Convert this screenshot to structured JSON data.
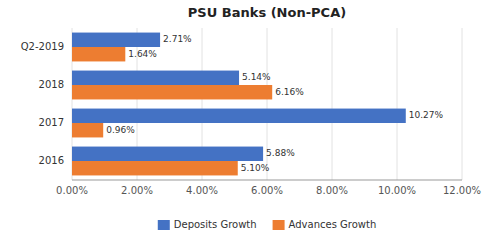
{
  "chart_data": {
    "type": "bar",
    "orientation": "horizontal",
    "title": "PSU Banks (Non-PCA)",
    "categories": [
      "Q2-2019",
      "2018",
      "2017",
      "2016"
    ],
    "series": [
      {
        "name": "Deposits Growth",
        "color": "#4472C4",
        "values": [
          2.71,
          5.14,
          10.27,
          5.88
        ],
        "value_labels": [
          "2.71%",
          "5.14%",
          "10.27%",
          "5.88%"
        ]
      },
      {
        "name": "Advances Growth",
        "color": "#ED7D31",
        "values": [
          1.64,
          6.16,
          0.96,
          5.1
        ],
        "value_labels": [
          "1.64%",
          "6.16%",
          "0.96%",
          "5.10%"
        ]
      }
    ],
    "xlim": [
      0,
      12.0
    ],
    "xticks": [
      {
        "value": 0,
        "label": "0.00%"
      },
      {
        "value": 2,
        "label": "2.00%"
      },
      {
        "value": 4,
        "label": "4.00%"
      },
      {
        "value": 6,
        "label": "6.00%"
      },
      {
        "value": 8,
        "label": "8.00%"
      },
      {
        "value": 10,
        "label": "10.00%"
      },
      {
        "value": 12,
        "label": "12.00%"
      }
    ],
    "grid": true,
    "data_labels": true,
    "legend": "bottom"
  }
}
